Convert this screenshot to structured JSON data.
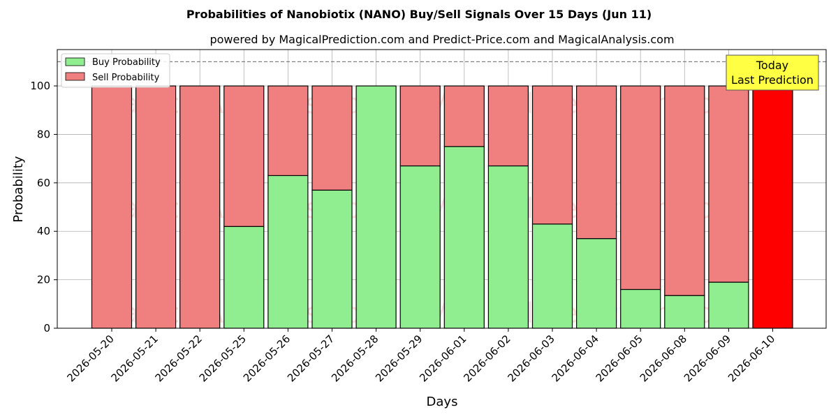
{
  "chart_data": {
    "type": "bar",
    "stacked": true,
    "title": "Probabilities of Nanobiotix (NANO) Buy/Sell Signals Over 15 Days (Jun 11)",
    "subtitle": "powered by MagicalPrediction.com and Predict-Price.com and MagicalAnalysis.com",
    "xlabel": "Days",
    "ylabel": "Probability",
    "ylim": [
      0,
      115
    ],
    "yticks": [
      0,
      20,
      40,
      60,
      80,
      100
    ],
    "grid": true,
    "legend_position": "top-left",
    "reference_line": 110,
    "categories": [
      "2026-05-20",
      "2026-05-21",
      "2026-05-22",
      "2026-05-25",
      "2026-05-26",
      "2026-05-27",
      "2026-05-28",
      "2026-05-29",
      "2026-06-01",
      "2026-06-02",
      "2026-06-03",
      "2026-06-04",
      "2026-06-05",
      "2026-06-08",
      "2026-06-09",
      "2026-06-10"
    ],
    "series": [
      {
        "name": "Buy Probability",
        "color": "#90ee90",
        "values": [
          0,
          0,
          0,
          42,
          63,
          57,
          100,
          67,
          75,
          67,
          43,
          37,
          16,
          13.5,
          19,
          0
        ]
      },
      {
        "name": "Sell Probability",
        "color": "#f08080",
        "values": [
          100,
          100,
          100,
          58,
          37,
          43,
          0,
          33,
          25,
          33,
          57,
          63,
          84,
          86.5,
          81,
          100
        ]
      }
    ],
    "highlight": {
      "category": "2026-06-10",
      "color": "#ff0000"
    },
    "annotation": {
      "lines": [
        "Today",
        "Last Prediction"
      ],
      "background": "#ffff44"
    },
    "watermarks": [
      "MagicalAnalysis.com",
      "MagicalPrediction.com"
    ]
  }
}
